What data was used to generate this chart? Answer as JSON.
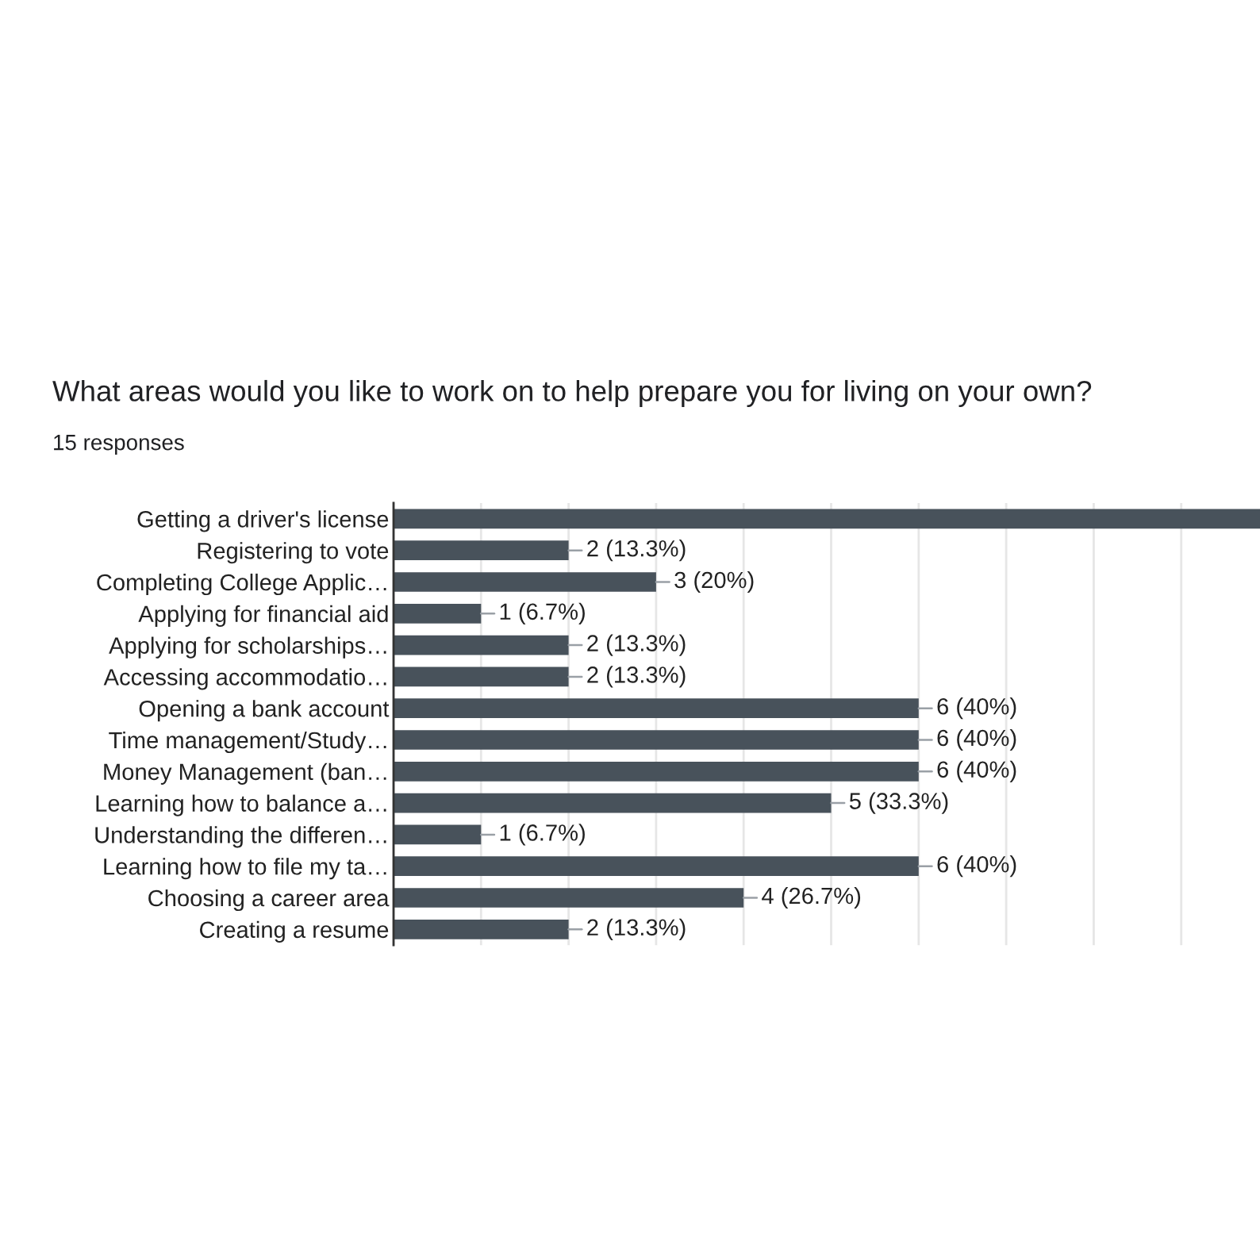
{
  "chart_data": {
    "type": "bar",
    "orientation": "horizontal",
    "title": "What areas would you like to work on to help prepare you for living on your own?",
    "subtitle": "15 responses",
    "categories": [
      "Getting a driver's license",
      "Registering to vote",
      "Completing College Applic…",
      "Applying for financial aid",
      "Applying for scholarships…",
      "Accessing accommodatio…",
      "Opening a bank account",
      "Time management/Study…",
      "Money Management (ban…",
      "Learning how to balance a…",
      "Understanding the differen…",
      "Learning how to file my ta…",
      "Choosing a career area",
      "Creating a resume"
    ],
    "values": [
      9.9,
      2,
      3,
      1,
      2,
      2,
      6,
      6,
      6,
      5,
      1,
      6,
      4,
      2
    ],
    "value_labels": [
      null,
      "2 (13.3%)",
      "3 (20%)",
      "1 (6.7%)",
      "2 (13.3%)",
      "2 (13.3%)",
      "6 (40%)",
      "6 (40%)",
      "6 (40%)",
      "5 (33.3%)",
      "1 (6.7%)",
      "6 (40%)",
      "4 (26.7%)",
      "2 (13.3%)"
    ],
    "color": "#48525b",
    "xlim": [
      0,
      9.9
    ],
    "xticks": [
      {
        "value": 0,
        "label": null
      },
      {
        "value": 1,
        "label": null
      },
      {
        "value": 2,
        "label": null
      },
      {
        "value": 3,
        "label": null
      },
      {
        "value": 4,
        "label": null
      },
      {
        "value": 5,
        "label": null
      },
      {
        "value": 6,
        "label": null
      },
      {
        "value": 7,
        "label": null
      },
      {
        "value": 8,
        "label": null
      },
      {
        "value": 9,
        "label": null
      }
    ],
    "grid": "x",
    "tick_labels": "y"
  }
}
